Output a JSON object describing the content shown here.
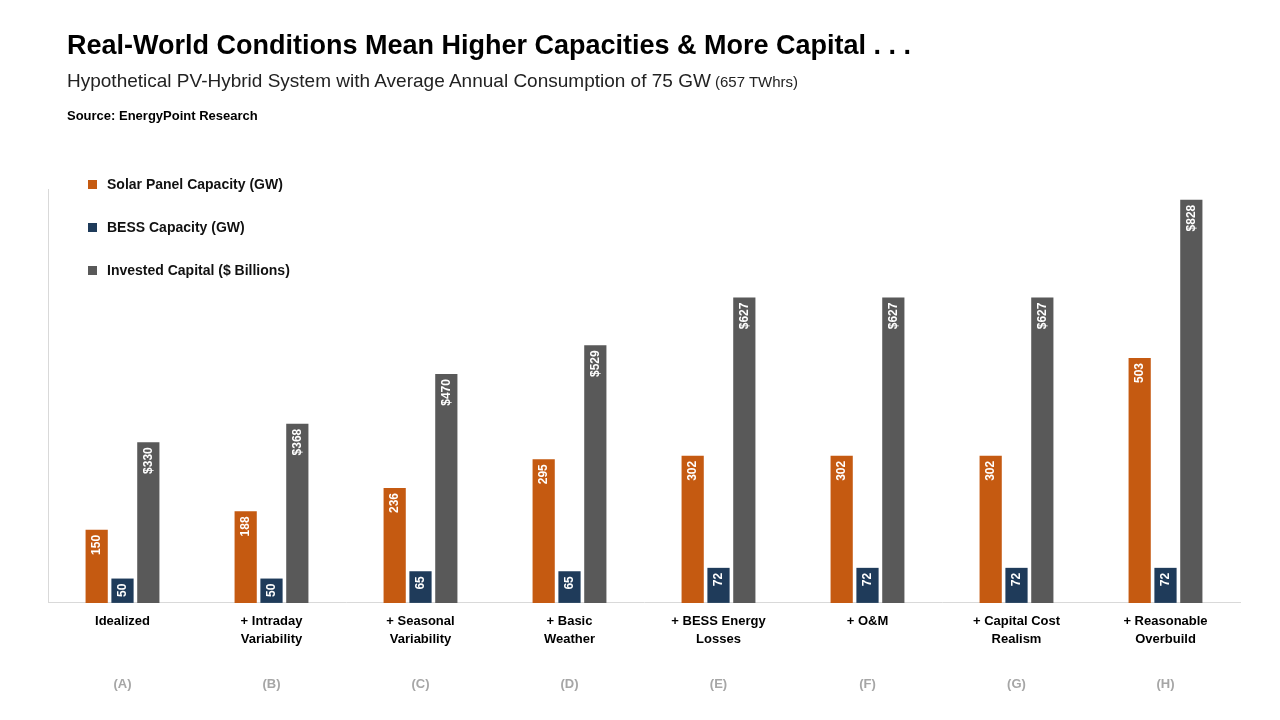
{
  "chart_data": {
    "type": "bar",
    "title": "Real-World Conditions Mean Higher Capacities & More Capital . . .",
    "subtitle": "Hypothetical PV-Hybrid System with Average Annual Consumption of 75 GW (657 TWhrs)",
    "annotations": {
      "source": "Source: EnergyPoint Research",
      "category_codes": [
        "(A)",
        "(B)",
        "(C)",
        "(D)",
        "(E)",
        "(F)",
        "(G)",
        "(H)"
      ]
    },
    "categories": [
      "Idealized",
      "+ Intraday\nVariability",
      "+ Seasonal\nVariability",
      "+ Basic\nWeather",
      "+ BESS Energy\nLosses",
      "+ O&M",
      "+ Capital Cost\nRealism",
      "+ Reasonable\nOverbuild"
    ],
    "series": [
      {
        "name": "Solar Panel Capacity (GW)",
        "color": "#c55a11",
        "values": [
          150,
          188,
          236,
          295,
          302,
          302,
          302,
          503
        ]
      },
      {
        "name": "BESS Capacity (GW)",
        "color": "#1f3b5a",
        "values": [
          50,
          50,
          65,
          65,
          72,
          72,
          72,
          72
        ]
      },
      {
        "name": "Invested Capital ($ Billions)",
        "color": "#595959",
        "values": [
          330,
          368,
          470,
          529,
          627,
          627,
          627,
          828
        ],
        "value_labels": [
          "$330",
          "$368",
          "$470",
          "$529",
          "$627",
          "$627",
          "$627",
          "$828"
        ]
      }
    ],
    "ylim": [
      0,
      850
    ],
    "tick_labels": "x",
    "grid": false,
    "legend": "upper left",
    "data_labels": true
  }
}
